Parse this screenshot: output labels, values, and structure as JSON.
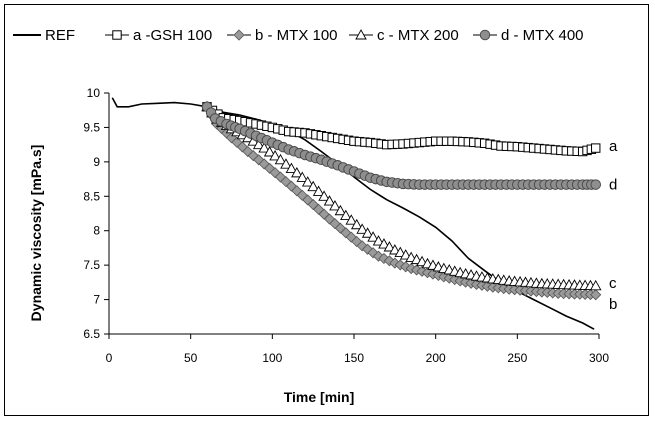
{
  "chart_data": {
    "type": "line",
    "title": "",
    "xlabel": "Time  [min]",
    "ylabel": "Dynamic viscosity [mPa.s]",
    "xlim": [
      0,
      300
    ],
    "ylim": [
      6.5,
      10
    ],
    "xticks": [
      0,
      50,
      100,
      150,
      200,
      250,
      300
    ],
    "yticks": [
      6.5,
      7,
      7.5,
      8,
      8.5,
      9,
      9.5,
      10
    ],
    "ytick_labels": [
      "6.5",
      "7",
      "7.5",
      "8",
      "8.5",
      "9",
      "9.5",
      "10"
    ],
    "grid": false,
    "legend_position": "top",
    "series": [
      {
        "name": "REF",
        "marker": "none",
        "color": "#000000",
        "points": [
          [
            2,
            9.93
          ],
          [
            5,
            9.8
          ],
          [
            12,
            9.8
          ],
          [
            20,
            9.84
          ],
          [
            30,
            9.85
          ],
          [
            40,
            9.86
          ],
          [
            50,
            9.84
          ],
          [
            60,
            9.8
          ],
          [
            70,
            9.72
          ],
          [
            80,
            9.68
          ],
          [
            90,
            9.62
          ],
          [
            100,
            9.55
          ],
          [
            110,
            9.45
          ],
          [
            120,
            9.32
          ],
          [
            130,
            9.15
          ],
          [
            140,
            8.97
          ],
          [
            150,
            8.78
          ],
          [
            160,
            8.6
          ],
          [
            170,
            8.45
          ],
          [
            180,
            8.33
          ],
          [
            190,
            8.2
          ],
          [
            200,
            8.05
          ],
          [
            210,
            7.85
          ],
          [
            220,
            7.6
          ],
          [
            230,
            7.42
          ],
          [
            240,
            7.25
          ],
          [
            250,
            7.12
          ],
          [
            260,
            7.0
          ],
          [
            270,
            6.88
          ],
          [
            280,
            6.76
          ],
          [
            290,
            6.66
          ],
          [
            297,
            6.57
          ]
        ]
      },
      {
        "name": "a -GSH 100",
        "end_label": "a",
        "marker": "square-open",
        "color": "#000000",
        "points": [
          [
            60,
            9.8
          ],
          [
            70,
            9.64
          ],
          [
            80,
            9.6
          ],
          [
            90,
            9.55
          ],
          [
            100,
            9.5
          ],
          [
            110,
            9.44
          ],
          [
            120,
            9.42
          ],
          [
            130,
            9.38
          ],
          [
            140,
            9.34
          ],
          [
            150,
            9.3
          ],
          [
            160,
            9.28
          ],
          [
            170,
            9.25
          ],
          [
            180,
            9.26
          ],
          [
            190,
            9.28
          ],
          [
            200,
            9.3
          ],
          [
            210,
            9.3
          ],
          [
            220,
            9.29
          ],
          [
            230,
            9.27
          ],
          [
            240,
            9.23
          ],
          [
            250,
            9.22
          ],
          [
            260,
            9.2
          ],
          [
            270,
            9.18
          ],
          [
            280,
            9.16
          ],
          [
            290,
            9.15
          ],
          [
            298,
            9.2
          ]
        ]
      },
      {
        "name": "b - MTX 100",
        "end_label": "b",
        "marker": "diamond-filled",
        "color": "#000000",
        "points": [
          [
            60,
            9.8
          ],
          [
            66,
            9.55
          ],
          [
            75,
            9.35
          ],
          [
            85,
            9.15
          ],
          [
            95,
            8.97
          ],
          [
            105,
            8.78
          ],
          [
            115,
            8.58
          ],
          [
            125,
            8.38
          ],
          [
            135,
            8.17
          ],
          [
            145,
            7.97
          ],
          [
            155,
            7.78
          ],
          [
            165,
            7.63
          ],
          [
            175,
            7.53
          ],
          [
            185,
            7.45
          ],
          [
            195,
            7.39
          ],
          [
            205,
            7.33
          ],
          [
            215,
            7.27
          ],
          [
            225,
            7.22
          ],
          [
            235,
            7.18
          ],
          [
            245,
            7.15
          ],
          [
            255,
            7.13
          ],
          [
            265,
            7.11
          ],
          [
            275,
            7.09
          ],
          [
            285,
            7.08
          ],
          [
            298,
            7.07
          ]
        ]
      },
      {
        "name": "c - MTX 200",
        "end_label": "c",
        "marker": "triangle-open",
        "color": "#000000",
        "points": [
          [
            60,
            9.8
          ],
          [
            66,
            9.62
          ],
          [
            75,
            9.48
          ],
          [
            85,
            9.35
          ],
          [
            95,
            9.2
          ],
          [
            105,
            9.03
          ],
          [
            115,
            8.84
          ],
          [
            125,
            8.64
          ],
          [
            135,
            8.43
          ],
          [
            145,
            8.22
          ],
          [
            155,
            8.02
          ],
          [
            165,
            7.85
          ],
          [
            175,
            7.72
          ],
          [
            185,
            7.61
          ],
          [
            195,
            7.52
          ],
          [
            205,
            7.45
          ],
          [
            215,
            7.39
          ],
          [
            225,
            7.34
          ],
          [
            235,
            7.3
          ],
          [
            245,
            7.27
          ],
          [
            255,
            7.25
          ],
          [
            265,
            7.23
          ],
          [
            275,
            7.22
          ],
          [
            285,
            7.21
          ],
          [
            298,
            7.2
          ]
        ]
      },
      {
        "name": "d - MTX 400",
        "end_label": "d",
        "marker": "circle-filled",
        "color": "#000000",
        "points": [
          [
            60,
            9.8
          ],
          [
            65,
            9.63
          ],
          [
            72,
            9.55
          ],
          [
            80,
            9.48
          ],
          [
            90,
            9.38
          ],
          [
            100,
            9.28
          ],
          [
            110,
            9.18
          ],
          [
            120,
            9.1
          ],
          [
            130,
            9.03
          ],
          [
            140,
            8.95
          ],
          [
            150,
            8.86
          ],
          [
            160,
            8.77
          ],
          [
            170,
            8.71
          ],
          [
            180,
            8.68
          ],
          [
            190,
            8.67
          ],
          [
            200,
            8.67
          ],
          [
            210,
            8.67
          ],
          [
            220,
            8.67
          ],
          [
            230,
            8.67
          ],
          [
            240,
            8.67
          ],
          [
            250,
            8.67
          ],
          [
            260,
            8.67
          ],
          [
            270,
            8.67
          ],
          [
            280,
            8.67
          ],
          [
            290,
            8.67
          ],
          [
            298,
            8.67
          ]
        ]
      }
    ]
  }
}
